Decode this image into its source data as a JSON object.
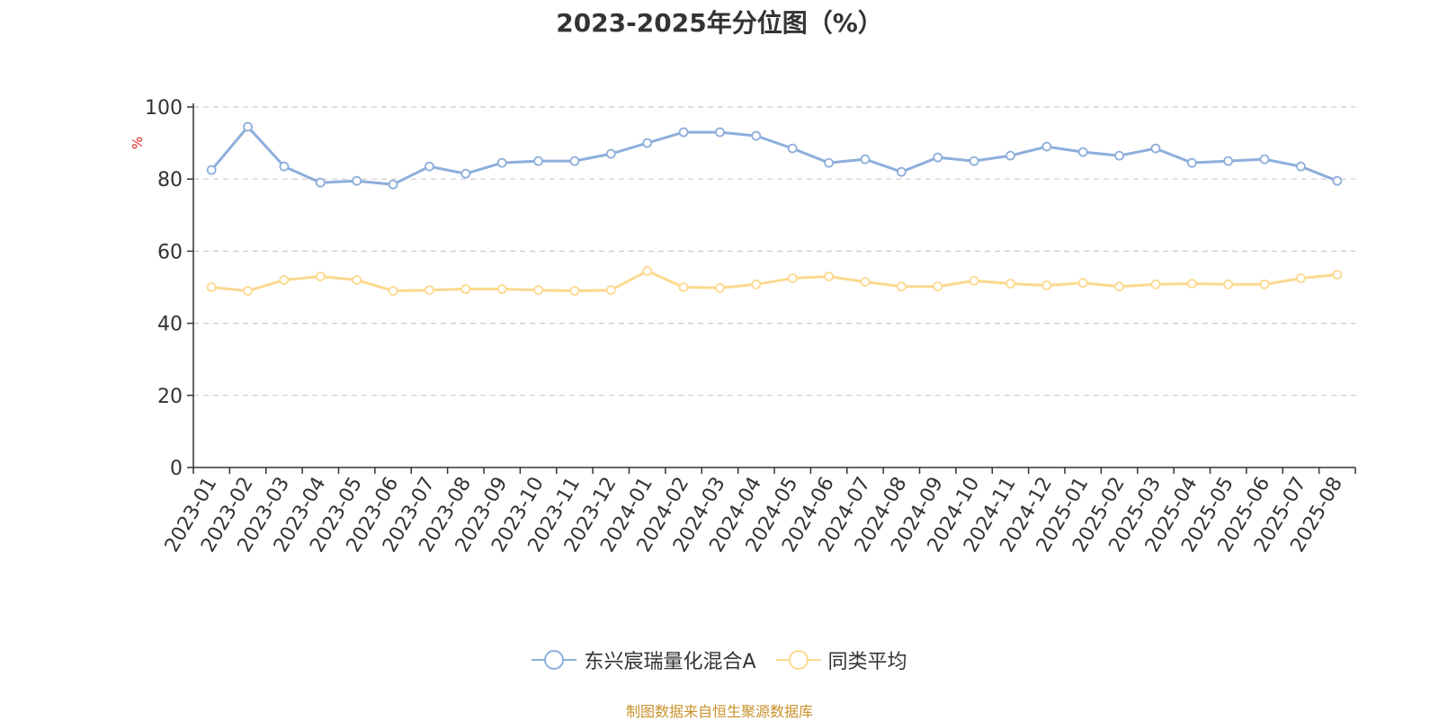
{
  "chart_data": {
    "type": "line",
    "title": "2023-2025年分位图（%）",
    "ylabel": "%",
    "xlabel": "",
    "ylim": [
      0,
      100
    ],
    "yticks": [
      0,
      20,
      40,
      60,
      80,
      100
    ],
    "grid": true,
    "legend_position": "bottom",
    "categories": [
      "2023-01",
      "2023-02",
      "2023-03",
      "2023-04",
      "2023-05",
      "2023-06",
      "2023-07",
      "2023-08",
      "2023-09",
      "2023-10",
      "2023-11",
      "2023-12",
      "2024-01",
      "2024-02",
      "2024-03",
      "2024-04",
      "2024-05",
      "2024-06",
      "2024-07",
      "2024-08",
      "2024-09",
      "2024-10",
      "2024-11",
      "2024-12",
      "2025-01",
      "2025-02",
      "2025-03",
      "2025-04",
      "2025-05",
      "2025-06",
      "2025-07",
      "2025-08"
    ],
    "series": [
      {
        "name": "东兴宸瑞量化混合A",
        "color": "#8eaedb",
        "values": [
          82.5,
          94.5,
          83.5,
          79,
          79.5,
          78.5,
          83.5,
          81.5,
          84.5,
          85,
          85,
          87,
          90,
          93,
          93,
          92,
          88.5,
          84.5,
          85.5,
          82,
          86,
          85,
          86.5,
          89,
          87.5,
          86.5,
          88.5,
          84.5,
          85,
          85.5,
          83.5,
          79.5
        ]
      },
      {
        "name": "同类平均",
        "color": "#fcd98f",
        "values": [
          50,
          49,
          52,
          53,
          52,
          49,
          49.2,
          49.5,
          49.5,
          49.2,
          49,
          49.2,
          54.5,
          50,
          49.8,
          50.8,
          52.5,
          53,
          51.5,
          50.2,
          50.2,
          51.8,
          51,
          50.5,
          51.2,
          50.2,
          50.8,
          51,
          50.8,
          50.8,
          52.5,
          53.5
        ]
      }
    ]
  },
  "footer": {
    "source": "制图数据来自恒生聚源数据库"
  }
}
